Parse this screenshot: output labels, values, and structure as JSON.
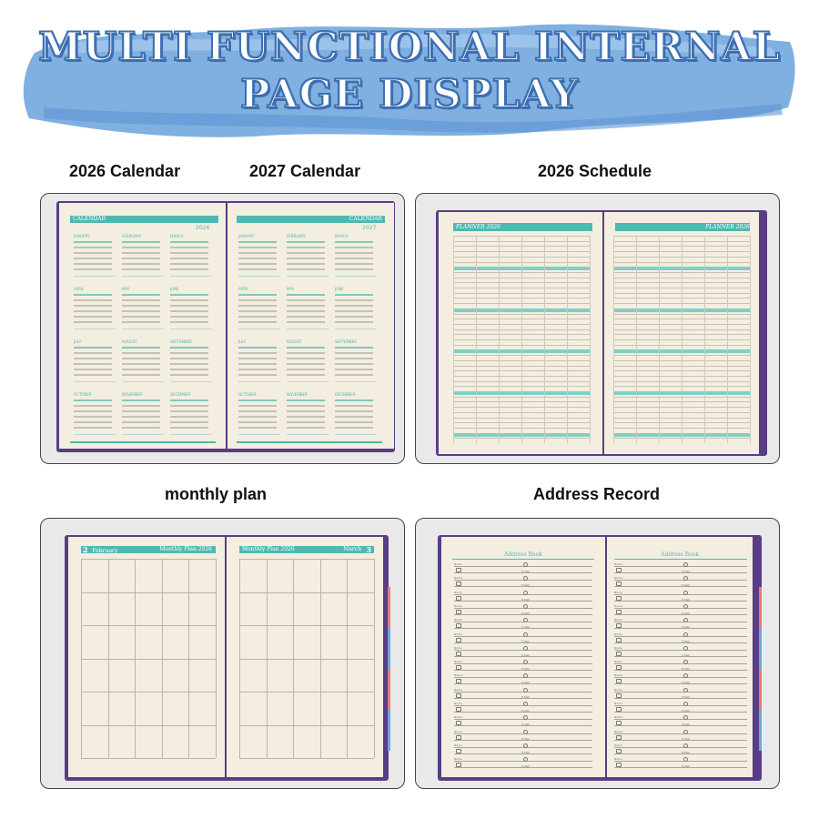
{
  "banner": {
    "title_line1": "MULTI FUNCTIONAL INTERNAL",
    "title_line2": "PAGE DISPLAY",
    "brush_color": "#7fb0e0",
    "outline_color": "#3d6fb2"
  },
  "labels": {
    "cal2026": "2026 Calendar",
    "cal2027": "2027 Calendar",
    "schedule": "2026 Schedule",
    "monthly": "monthly plan",
    "address": "Address Record"
  },
  "calendar_page": {
    "left_header": "CALENDAR",
    "left_year": "2026",
    "right_header": "CALENDAR",
    "right_year": "2027",
    "months": [
      "JANUARY",
      "FEBRUARY",
      "MARCH",
      "APRIL",
      "MAY",
      "JUNE",
      "JULY",
      "AUGUST",
      "SEPTEMBER",
      "OCTOBER",
      "NOVEMBER",
      "DECEMBER"
    ]
  },
  "schedule_page": {
    "left_header": "PLANNER 2026",
    "right_header": "PLANNER 2026"
  },
  "monthly_page": {
    "left_month_num": "2",
    "left_month_name": "February",
    "left_header": "Monthly Plan 2026",
    "right_header": "Monthly Plan 2026",
    "right_month_name": "March",
    "right_month_num": "3"
  },
  "address_page": {
    "left_header": "Address Book",
    "right_header": "Address Book",
    "field_name": "Name",
    "field_email": "E-Mail"
  },
  "colors": {
    "teal": "#4fb8b2",
    "paper": "#f3eedf",
    "cover": "#5a3d86",
    "panel_bg": "#e9e9ea"
  }
}
